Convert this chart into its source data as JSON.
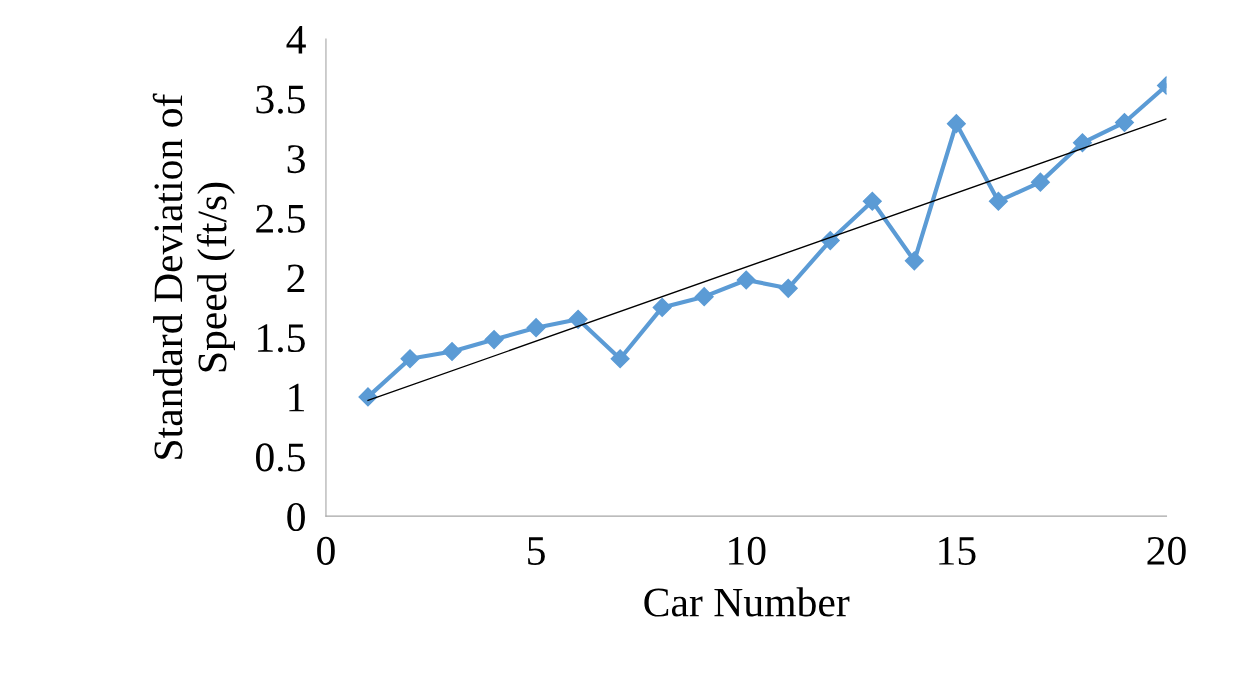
{
  "chart_data": {
    "type": "line",
    "xlabel": "Car Number",
    "ylabel": "Standard Deviation of\nSpeed (ft/s)",
    "xlim": [
      0,
      20
    ],
    "xticks": [
      0,
      5,
      10,
      15,
      20
    ],
    "ylim": [
      0,
      4
    ],
    "yticks": [
      0,
      {
        "value": 0.5,
        "label": "0.5"
      },
      1,
      {
        "value": 1.5,
        "label": "1.5"
      },
      2,
      {
        "value": 2.5,
        "label": "2.5"
      },
      3,
      {
        "value": 3.5,
        "label": "3.5"
      },
      4
    ],
    "grid": false,
    "legend": false,
    "series": [
      {
        "color": "#5b9bd5",
        "marker": "diamond",
        "x": [
          1,
          2,
          3,
          4,
          5,
          6,
          7,
          8,
          9,
          10,
          11,
          12,
          13,
          14,
          15,
          16,
          17,
          18,
          19,
          20
        ],
        "values": [
          1.0,
          1.32,
          1.38,
          1.48,
          1.58,
          1.65,
          1.32,
          1.75,
          1.84,
          1.98,
          1.91,
          2.31,
          2.64,
          2.14,
          3.29,
          2.64,
          2.8,
          3.13,
          3.3,
          3.61
        ]
      },
      {
        "type": "line",
        "color": "#000000",
        "marker": "none",
        "x": [
          1,
          20
        ],
        "values": [
          0.97,
          3.33
        ]
      }
    ]
  }
}
